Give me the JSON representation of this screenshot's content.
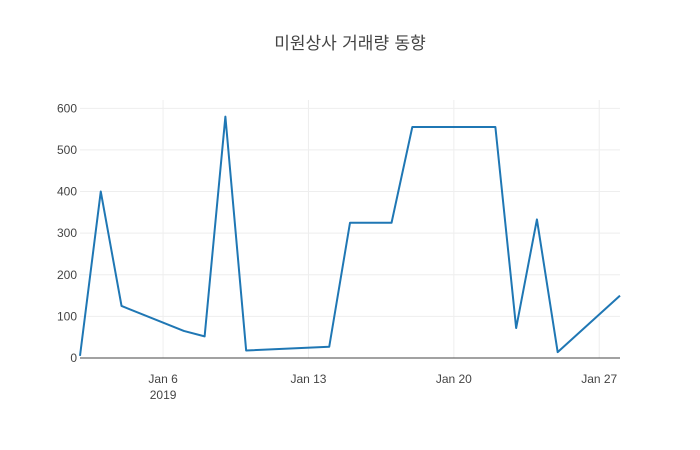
{
  "chart_data": {
    "type": "line",
    "title": "미원상사 거래량 동향",
    "xlabel": "",
    "ylabel": "",
    "x_range": [
      "2019-01-02",
      "2019-01-28"
    ],
    "ylim": [
      0,
      620
    ],
    "grid": true,
    "legend": "none",
    "y_ticks": [
      {
        "value": 0,
        "label": "0"
      },
      {
        "value": 100,
        "label": "100"
      },
      {
        "value": 200,
        "label": "200"
      },
      {
        "value": 300,
        "label": "300"
      },
      {
        "value": 400,
        "label": "400"
      },
      {
        "value": 500,
        "label": "500"
      },
      {
        "value": 600,
        "label": "600"
      }
    ],
    "x_ticks": [
      {
        "value": "2019-01-06",
        "label": "Jan 6",
        "sublabel": "2019"
      },
      {
        "value": "2019-01-13",
        "label": "Jan 13",
        "sublabel": ""
      },
      {
        "value": "2019-01-20",
        "label": "Jan 20",
        "sublabel": ""
      },
      {
        "value": "2019-01-27",
        "label": "Jan 27",
        "sublabel": ""
      }
    ],
    "series": [
      {
        "color": "#1f77b4",
        "x": [
          "2019-01-02",
          "2019-01-03",
          "2019-01-04",
          "2019-01-07",
          "2019-01-08",
          "2019-01-09",
          "2019-01-10",
          "2019-01-14",
          "2019-01-15",
          "2019-01-16",
          "2019-01-17",
          "2019-01-18",
          "2019-01-21",
          "2019-01-22",
          "2019-01-23",
          "2019-01-24",
          "2019-01-25",
          "2019-01-28"
        ],
        "y": [
          5,
          400,
          125,
          65,
          52,
          580,
          18,
          27,
          325,
          325,
          325,
          555,
          555,
          555,
          72,
          333,
          14,
          150
        ]
      }
    ]
  }
}
